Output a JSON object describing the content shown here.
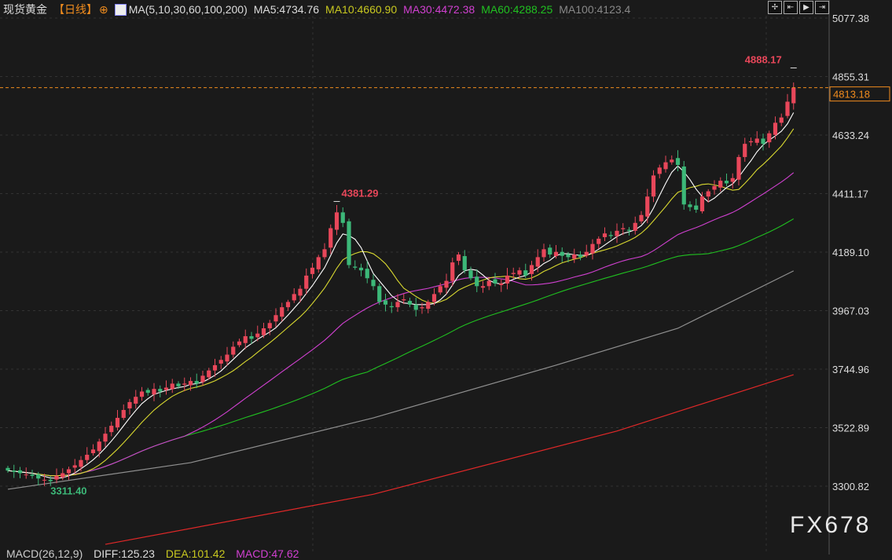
{
  "header": {
    "instrument": "现货黄金",
    "period": "【日线】",
    "period_icon": "crosshair-circle-icon",
    "indicator_icon": "chart-icon",
    "ma_label": "MA(5,10,30,60,100,200)",
    "ma5": "MA5:4734.76",
    "ma10": "MA10:4660.90",
    "ma30": "MA30:4472.38",
    "ma60": "MA60:4288.25",
    "ma100": "MA100:4123.4"
  },
  "toolbar": {
    "icons": [
      "crosshair-icon",
      "first-bar-icon",
      "play-icon",
      "jump-end-icon"
    ]
  },
  "footer": {
    "macd": "MACD(26,12,9)",
    "diff": "DIFF:125.23",
    "dea": "DEA:101.42",
    "macd_val": "MACD:47.62"
  },
  "watermark": "FX678",
  "colors": {
    "up": "#e8475a",
    "down": "#3cb878",
    "ma5": "#ffffff",
    "ma10": "#d8d830",
    "ma30": "#d040d0",
    "ma60": "#20c020",
    "ma100": "#909090",
    "ma200": "#e02828",
    "last": "#f08c1e"
  },
  "chart_data": {
    "type": "candlestick",
    "ylim": [
      3300.82,
      5077.38
    ],
    "y_ticks": [
      "5077.38",
      "4855.31",
      "4633.24",
      "4411.17",
      "4189.10",
      "3967.03",
      "3744.96",
      "3522.89",
      "3300.82"
    ],
    "last_price": "4813.18",
    "annotations": [
      {
        "label": "4888.17",
        "type": "high",
        "index": 129
      },
      {
        "label": "4381.29",
        "type": "high",
        "index": 54
      },
      {
        "label": "3311.40",
        "type": "low",
        "index": 7
      }
    ],
    "closes": [
      3360,
      3355,
      3350,
      3345,
      3340,
      3330,
      3325,
      3320,
      3340,
      3350,
      3365,
      3380,
      3400,
      3420,
      3440,
      3470,
      3500,
      3530,
      3560,
      3590,
      3620,
      3640,
      3660,
      3655,
      3670,
      3660,
      3675,
      3690,
      3680,
      3690,
      3700,
      3690,
      3720,
      3740,
      3760,
      3780,
      3800,
      3830,
      3850,
      3870,
      3860,
      3880,
      3900,
      3920,
      3950,
      3980,
      4000,
      4030,
      4050,
      4100,
      4130,
      4170,
      4200,
      4280,
      4340,
      4300,
      4140,
      4130,
      4120,
      4090,
      4060,
      4000,
      3990,
      3980,
      4000,
      4010,
      3990,
      3970,
      3980,
      4000,
      4030,
      4060,
      4080,
      4150,
      4180,
      4120,
      4090,
      4060,
      4060,
      4080,
      4070,
      4070,
      4100,
      4110,
      4120,
      4100,
      4140,
      4170,
      4200,
      4180,
      4190,
      4175,
      4170,
      4180,
      4170,
      4190,
      4220,
      4240,
      4260,
      4250,
      4270,
      4280,
      4270,
      4300,
      4330,
      4400,
      4480,
      4510,
      4530,
      4540,
      4520,
      4370,
      4360,
      4350,
      4400,
      4420,
      4440,
      4460,
      4450,
      4470,
      4550,
      4600,
      4610,
      4620,
      4600,
      4640,
      4680,
      4700,
      4760,
      4813
    ],
    "ma100_points": [
      [
        0,
        3289
      ],
      [
        30,
        3390
      ],
      [
        60,
        3560
      ],
      [
        90,
        3760
      ],
      [
        110,
        3900
      ],
      [
        129,
        4118
      ]
    ],
    "ma200_points": [
      [
        16,
        3080
      ],
      [
        60,
        3270
      ],
      [
        100,
        3510
      ],
      [
        129,
        3724
      ]
    ]
  }
}
